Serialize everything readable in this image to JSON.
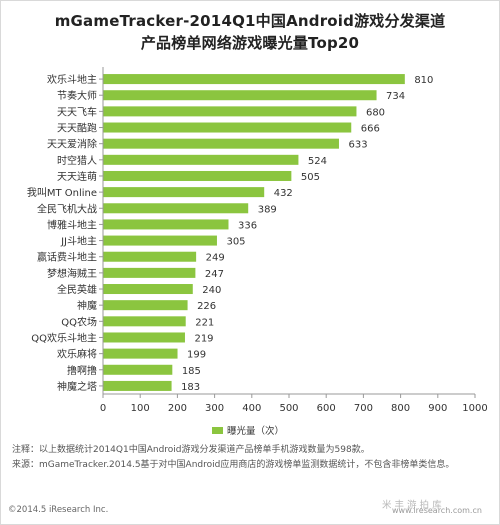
{
  "title_line1": "mGameTracker-2014Q1中国Android游戏分发渠道",
  "title_line2": "产品榜单网络游戏曝光量Top20",
  "chart_data": {
    "type": "bar",
    "orientation": "horizontal",
    "categories": [
      "欢乐斗地主",
      "节奏大师",
      "天天飞车",
      "天天酷跑",
      "天天爱消除",
      "时空猎人",
      "天天连萌",
      "我叫MT Online",
      "全民飞机大战",
      "博雅斗地主",
      "JJ斗地主",
      "赢话费斗地主",
      "梦想海贼王",
      "全民英雄",
      "神魔",
      "QQ农场",
      "QQ欢乐斗地主",
      "欢乐麻将",
      "撸啊撸",
      "神魔之塔"
    ],
    "series": [
      {
        "name": "曝光量（次）",
        "values": [
          810,
          734,
          680,
          666,
          633,
          524,
          505,
          432,
          389,
          336,
          305,
          249,
          247,
          240,
          226,
          221,
          219,
          199,
          185,
          183
        ]
      }
    ],
    "xlim": [
      0,
      1000
    ],
    "xticks": [
      0,
      100,
      200,
      300,
      400,
      500,
      600,
      700,
      800,
      900,
      1000
    ],
    "grid": false,
    "legend_position": "bottom",
    "bar_color": "#8bc53f"
  },
  "legend_label": "曝光量（次）",
  "note1": "注释：以上数据统计2014Q1中国Android游戏分发渠道产品榜单手机游戏数量为598款。",
  "note2": "来源：mGameTracker.2014.5基于对中国Android应用商店的游戏榜单监测数据统计，不包含非榜单类信息。",
  "copyright": "©2014.5 iResearch Inc.",
  "watermark": "米 丰 游 拍 库",
  "site": "www.iresearch.com.cn"
}
